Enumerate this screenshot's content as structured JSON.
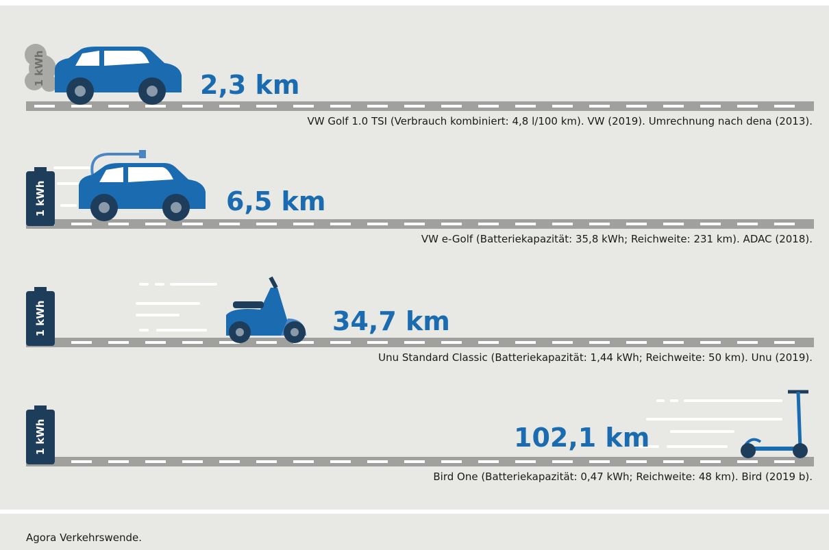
{
  "rows": [
    {
      "energy": "1 kWh",
      "distance": "2,3 km",
      "source": "VW Golf 1.0 TSI (Verbrauch kombiniert: 4,8 l/100 km). VW (2019). Umrechnung nach dena (2013)."
    },
    {
      "energy": "1 kWh",
      "distance": "6,5 km",
      "source": "VW e-Golf (Batteriekapazität: 35,8 kWh; Reichweite: 231 km). ADAC (2018)."
    },
    {
      "energy": "1 kWh",
      "distance": "34,7 km",
      "source": "Unu Standard Classic (Batteriekapazität: 1,44 kWh; Reichweite: 50 km). Unu (2019)."
    },
    {
      "energy": "1 kWh",
      "distance": "102,1 km",
      "source": "Bird One (Batteriekapazität: 0,47 kWh; Reichweite: 48 km). Bird (2019 b)."
    }
  ],
  "footer": "Agora Verkehrswende."
}
